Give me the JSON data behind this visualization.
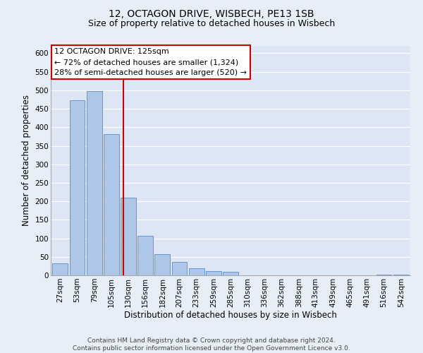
{
  "title": "12, OCTAGON DRIVE, WISBECH, PE13 1SB",
  "subtitle": "Size of property relative to detached houses in Wisbech",
  "xlabel": "Distribution of detached houses by size in Wisbech",
  "ylabel": "Number of detached properties",
  "bar_labels": [
    "27sqm",
    "53sqm",
    "79sqm",
    "105sqm",
    "130sqm",
    "156sqm",
    "182sqm",
    "207sqm",
    "233sqm",
    "259sqm",
    "285sqm",
    "310sqm",
    "336sqm",
    "362sqm",
    "388sqm",
    "413sqm",
    "439sqm",
    "465sqm",
    "491sqm",
    "516sqm",
    "542sqm"
  ],
  "bar_values": [
    32,
    473,
    498,
    382,
    210,
    106,
    57,
    37,
    20,
    12,
    10,
    0,
    0,
    0,
    0,
    0,
    0,
    0,
    0,
    2,
    2
  ],
  "bar_color": "#aec6e8",
  "bar_edgecolor": "#5b8bc4",
  "background_color": "#e8eef7",
  "plot_bg_color": "#dce6f5",
  "grid_color": "#ffffff",
  "ylim": [
    0,
    620
  ],
  "yticks": [
    0,
    50,
    100,
    150,
    200,
    250,
    300,
    350,
    400,
    450,
    500,
    550,
    600
  ],
  "vline_x": 3.72,
  "vline_color": "#cc0000",
  "annotation_title": "12 OCTAGON DRIVE: 125sqm",
  "annotation_line1": "← 72% of detached houses are smaller (1,324)",
  "annotation_line2": "28% of semi-detached houses are larger (520) →",
  "annotation_box_color": "#ffffff",
  "annotation_box_edgecolor": "#cc0000",
  "footer_line1": "Contains HM Land Registry data © Crown copyright and database right 2024.",
  "footer_line2": "Contains public sector information licensed under the Open Government Licence v3.0.",
  "title_fontsize": 10,
  "subtitle_fontsize": 9,
  "axis_label_fontsize": 8.5,
  "tick_fontsize": 7.5,
  "annotation_fontsize": 8,
  "footer_fontsize": 6.5
}
